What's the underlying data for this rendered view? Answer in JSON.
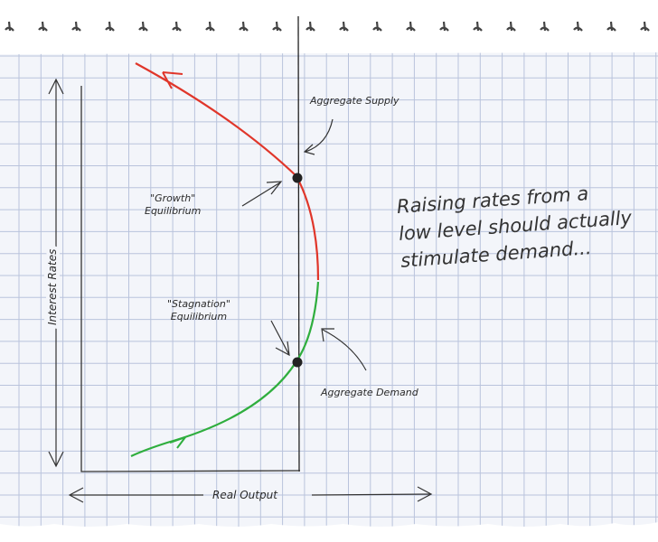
{
  "diagram": {
    "y_axis_label": "Interest Rates",
    "x_axis_label": "Real Output",
    "supply_label": "Aggregate Supply",
    "demand_label": "Aggregate Demand",
    "growth_label": [
      "\"Growth\"",
      "Equilibrium"
    ],
    "stagnation_label": [
      "\"Stagnation\"",
      "Equilibrium"
    ],
    "note": [
      "Raising rates from a",
      "low level should actually",
      "stimulate demand..."
    ],
    "colors": {
      "upper_curve": "#e0362a",
      "lower_curve": "#2fae3e",
      "grid": "#b9c3dc",
      "ink": "#2a2a2a"
    }
  }
}
